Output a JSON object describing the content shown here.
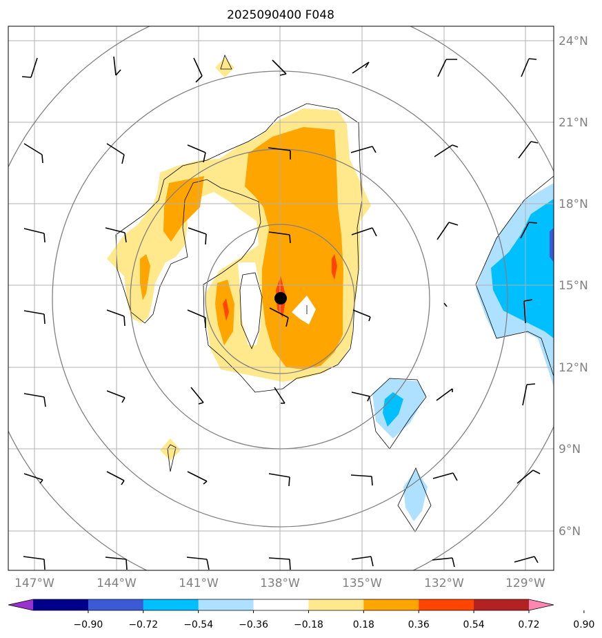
{
  "title": "2025090400 F048",
  "chart_data": {
    "type": "map",
    "title": "2025090400 F048",
    "lon_ticks": [
      "147°W",
      "144°W",
      "141°W",
      "138°W",
      "135°W",
      "132°W",
      "129°W"
    ],
    "lat_ticks": [
      "24°N",
      "21°N",
      "18°N",
      "15°N",
      "12°N",
      "9°N",
      "6°N"
    ],
    "grid": true,
    "center": {
      "lon": "138°W",
      "lat": "14.5°N",
      "marker": "storm-center"
    },
    "range_rings": 4,
    "colorbar": {
      "ticks": [
        "−0.90",
        "−0.72",
        "−0.54",
        "−0.36",
        "−0.18",
        "0.18",
        "0.36",
        "0.54",
        "0.72",
        "0.90"
      ],
      "colors": [
        "#9932cc",
        "#00008b",
        "#3b5bd6",
        "#00bfff",
        "#aee1ff",
        "#ffffff",
        "#ffe98c",
        "#ffa500",
        "#ff4500",
        "#b22222",
        "#ff86b0"
      ],
      "extend": "both"
    }
  }
}
